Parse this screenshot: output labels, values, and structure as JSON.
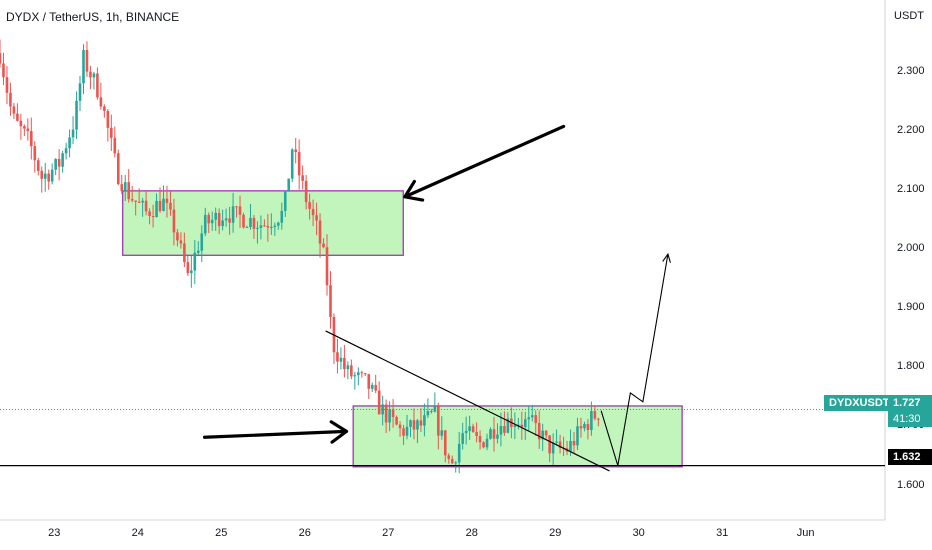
{
  "header": {
    "title": "DYDX / TetherUS, 1h, BINANCE",
    "currency": "USDT"
  },
  "colors": {
    "up": "#26a69a",
    "down": "#ef5350",
    "zone_fill": "#b6f3b0",
    "zone_border": "#9c27b0",
    "price_tag": "#26a69a",
    "level_line": "#000000"
  },
  "price_tags": {
    "symbol": "DYDXUSDT",
    "last_price": "1.727",
    "countdown": "41:30",
    "level": "1.632"
  },
  "chart_data": {
    "type": "candlestick",
    "title": "DYDX / TetherUS, 1h, BINANCE",
    "xlabel": "",
    "ylabel": "USDT",
    "x_ticks": [
      "23",
      "24",
      "25",
      "26",
      "27",
      "28",
      "29",
      "30",
      "31",
      "Jun"
    ],
    "y_ticks": [
      "1.600",
      "1.700",
      "1.800",
      "1.900",
      "2.000",
      "2.100",
      "2.200",
      "2.300"
    ],
    "ylim": [
      1.54,
      2.42
    ],
    "xlim_days": [
      22.35,
      32.95
    ],
    "last_price": 1.727,
    "support_level": 1.632,
    "path_points": [
      [
        22.35,
        2.33
      ],
      [
        22.5,
        2.22
      ],
      [
        22.7,
        2.18
      ],
      [
        22.85,
        2.12
      ],
      [
        23.05,
        2.14
      ],
      [
        23.25,
        2.22
      ],
      [
        23.35,
        2.32
      ],
      [
        23.55,
        2.26
      ],
      [
        23.75,
        2.13
      ],
      [
        23.9,
        2.09
      ],
      [
        24.1,
        2.06
      ],
      [
        24.3,
        2.08
      ],
      [
        24.45,
        2.03
      ],
      [
        24.6,
        1.95
      ],
      [
        24.8,
        2.04
      ],
      [
        25.05,
        2.06
      ],
      [
        25.3,
        2.05
      ],
      [
        25.5,
        2.04
      ],
      [
        25.75,
        2.06
      ],
      [
        25.85,
        2.17
      ],
      [
        26.0,
        2.09
      ],
      [
        26.15,
        2.03
      ],
      [
        26.25,
        1.97
      ],
      [
        26.33,
        1.84
      ],
      [
        26.5,
        1.79
      ],
      [
        26.75,
        1.77
      ],
      [
        26.9,
        1.73
      ],
      [
        27.15,
        1.69
      ],
      [
        27.4,
        1.7
      ],
      [
        27.55,
        1.72
      ],
      [
        27.75,
        1.63
      ],
      [
        27.9,
        1.69
      ],
      [
        28.1,
        1.67
      ],
      [
        28.3,
        1.7
      ],
      [
        28.5,
        1.71
      ],
      [
        28.75,
        1.7
      ],
      [
        28.95,
        1.66
      ],
      [
        29.15,
        1.66
      ],
      [
        29.35,
        1.7
      ],
      [
        29.55,
        1.727
      ]
    ],
    "zones": [
      {
        "x0": 23.82,
        "x1": 27.18,
        "y0": 1.988,
        "y1": 2.097
      },
      {
        "x0": 26.58,
        "x1": 30.52,
        "y0": 1.63,
        "y1": 1.733
      }
    ],
    "trendline": [
      [
        26.25,
        1.86
      ],
      [
        29.65,
        1.623
      ]
    ],
    "projection": [
      [
        29.55,
        1.725
      ],
      [
        29.75,
        1.632
      ],
      [
        29.9,
        1.755
      ],
      [
        30.05,
        1.74
      ],
      [
        30.35,
        1.99
      ]
    ],
    "arrows": [
      {
        "from": [
          29.1,
          2.206
        ],
        "to": [
          27.2,
          2.087
        ]
      },
      {
        "from": [
          24.8,
          1.68
        ],
        "to": [
          26.5,
          1.69
        ]
      }
    ]
  }
}
